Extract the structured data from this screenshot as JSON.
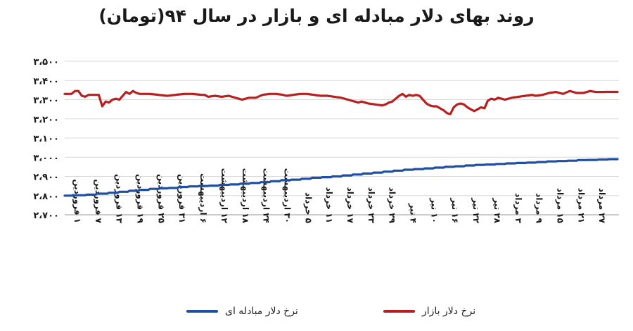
{
  "chart_data": {
    "type": "line",
    "title": "روند بهای دلار مبادله ای و بازار در سال ۹۴(تومان)",
    "ylim": [
      2700,
      3500
    ],
    "yticks": [
      "۲،۷۰۰",
      "۲،۸۰۰",
      "۲،۹۰۰",
      "۳،۰۰۰",
      "۳،۱۰۰",
      "۳،۲۰۰",
      "۳،۳۰۰",
      "۳،۴۰۰",
      "۳،۵۰۰"
    ],
    "ytick_values": [
      2700,
      2800,
      2900,
      3000,
      3100,
      3200,
      3300,
      3400,
      3500
    ],
    "grid": true,
    "legend_position": "bottom",
    "x_labels": [
      "۱ فروردین",
      "۷ فروردین",
      "۱۳ فروردین",
      "۱۹ فروردین",
      "۲۵ فروردین",
      "۳۱ فروردین",
      "۶ اردیبهشت",
      "۱۲ اردیبهشت",
      "۱۸ اردیبهشت",
      "۲۴ اردیبهشت",
      "۳۰ اردیبهشت",
      "۵ خرداد",
      "۱۱ خرداد",
      "۱۷ خرداد",
      "۲۳ خرداد",
      "۲۹ خرداد",
      "۴ تیر",
      "۱۰ تیر",
      "۱۶ تیر",
      "۲۲ تیر",
      "۲۸ تیر",
      "۳ مرداد",
      "۹ مرداد",
      "۱۵ مرداد",
      "۲۱ مرداد",
      "۲۷ مرداد"
    ],
    "series": [
      {
        "name": "نرخ دلار مبادله ای",
        "color": "#1f4fa3",
        "values": [
          2800,
          2800,
          2800,
          2800,
          2800,
          2800,
          2802,
          2802,
          2802,
          2802,
          2802,
          2802,
          2802,
          2805,
          2805,
          2805,
          2805,
          2805,
          2805,
          2810,
          2810,
          2810,
          2810,
          2810,
          2810,
          2810,
          2815,
          2815,
          2815,
          2815,
          2815,
          2815,
          2820,
          2820,
          2820,
          2820,
          2820,
          2820,
          2825,
          2825,
          2825,
          2825,
          2825,
          2825,
          2830,
          2830,
          2830,
          2830,
          2830,
          2830,
          2835,
          2835,
          2835,
          2835,
          2835,
          2835,
          2838,
          2838,
          2838,
          2838,
          2838,
          2840,
          2840,
          2840,
          2840,
          2840,
          2840,
          2845,
          2845,
          2845,
          2845,
          2845,
          2845,
          2848,
          2848,
          2848,
          2848,
          2848,
          2848,
          2850,
          2850,
          2850,
          2850,
          2850,
          2850,
          2852,
          2852,
          2852,
          2852,
          2852,
          2852,
          2856,
          2856,
          2856,
          2856,
          2856,
          2856,
          2858,
          2858,
          2858,
          2858,
          2858,
          2858,
          2862,
          2862,
          2862,
          2862,
          2862,
          2862,
          2866,
          2866,
          2866,
          2866,
          2866,
          2866,
          2870,
          2870,
          2870,
          2870,
          2870,
          2870,
          2875,
          2875,
          2875,
          2875,
          2875,
          2875,
          2880,
          2880,
          2880,
          2880,
          2880,
          2880,
          2883,
          2883,
          2883,
          2883,
          2883,
          2883,
          2888,
          2888,
          2888,
          2888,
          2888,
          2888,
          2893,
          2893,
          2893,
          2893,
          2893,
          2893,
          2896,
          2896,
          2896,
          2896,
          2896,
          2896,
          2900,
          2900,
          2900,
          2900,
          2900,
          2900,
          2905,
          2905,
          2905,
          2905,
          2905,
          2905,
          2910,
          2910,
          2910,
          2910,
          2910,
          2910,
          2915,
          2915,
          2915,
          2915,
          2915,
          2915,
          2920,
          2920,
          2920,
          2920,
          2920,
          2920,
          2925,
          2925,
          2925,
          2925,
          2925,
          2925,
          2930,
          2930,
          2930,
          2930,
          2930,
          2930,
          2935,
          2935,
          2935,
          2935,
          2935,
          2935,
          2938,
          2938,
          2938,
          2938,
          2938,
          2938,
          2942,
          2942,
          2942,
          2942,
          2942,
          2942,
          2946,
          2946,
          2946,
          2946,
          2946,
          2946,
          2950,
          2950,
          2950,
          2950,
          2950,
          2950,
          2953,
          2953,
          2953,
          2953,
          2953,
          2953,
          2957,
          2957,
          2957,
          2957,
          2957,
          2957,
          2960,
          2960,
          2960,
          2960,
          2960,
          2960,
          2962,
          2962,
          2962,
          2962,
          2962,
          2962,
          2965,
          2965,
          2965,
          2965,
          2965,
          2965,
          2968,
          2968,
          2968,
          2968,
          2968,
          2968,
          2970,
          2970,
          2970,
          2970,
          2970,
          2970,
          2972,
          2972,
          2972,
          2972,
          2972,
          2972,
          2975,
          2975,
          2975,
          2975,
          2975,
          2975,
          2978,
          2978,
          2978,
          2978,
          2978,
          2978,
          2980,
          2980,
          2980,
          2980,
          2980,
          2980,
          2982,
          2982,
          2982,
          2982,
          2982,
          2982,
          2985,
          2985,
          2985,
          2985,
          2985,
          2985,
          2986,
          2986,
          2986,
          2986,
          2986,
          2986,
          2988,
          2988,
          2988,
          2988,
          2988,
          2988,
          2990,
          2990,
          2990,
          2990,
          2990,
          2990
        ],
        "x_start": 1,
        "note_unused": ""
      }
    ]
  },
  "legend": {
    "series0_label": "نرخ دلار مبادله ای",
    "series1_label": "نرخ دلار بازار"
  }
}
